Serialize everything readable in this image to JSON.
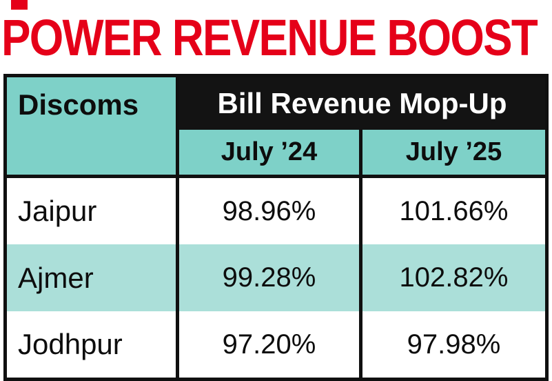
{
  "title": "POWER REVENUE BOOST",
  "colors": {
    "title_red": "#e50019",
    "teal_header": "#7ed1c8",
    "teal_row": "#abdfd9",
    "header_black": "#131313",
    "border_black": "#101010"
  },
  "table": {
    "corner_header": "Discoms",
    "group_header": "Bill Revenue Mop-Up",
    "col_24": "July ’24",
    "col_25": "July ’25",
    "rows": [
      {
        "name": "Jaipur",
        "v24": "98.96%",
        "v25": "101.66%"
      },
      {
        "name": "Ajmer",
        "v24": "99.28%",
        "v25": "102.82%"
      },
      {
        "name": "Jodhpur",
        "v24": "97.20%",
        "v25": "97.98%"
      }
    ]
  },
  "chart_data": {
    "type": "table",
    "title": "POWER REVENUE BOOST",
    "columns": [
      "Discoms",
      "July ’24",
      "July ’25"
    ],
    "group_header": "Bill Revenue Mop-Up",
    "rows": [
      [
        "Jaipur",
        "98.96%",
        "101.66%"
      ],
      [
        "Ajmer",
        "99.28%",
        "102.82%"
      ],
      [
        "Jodhpur",
        "97.20%",
        "97.98%"
      ]
    ],
    "unit": "percent",
    "notes": "Bill revenue mop-up percentage by discom, July 2024 vs July 2025"
  }
}
